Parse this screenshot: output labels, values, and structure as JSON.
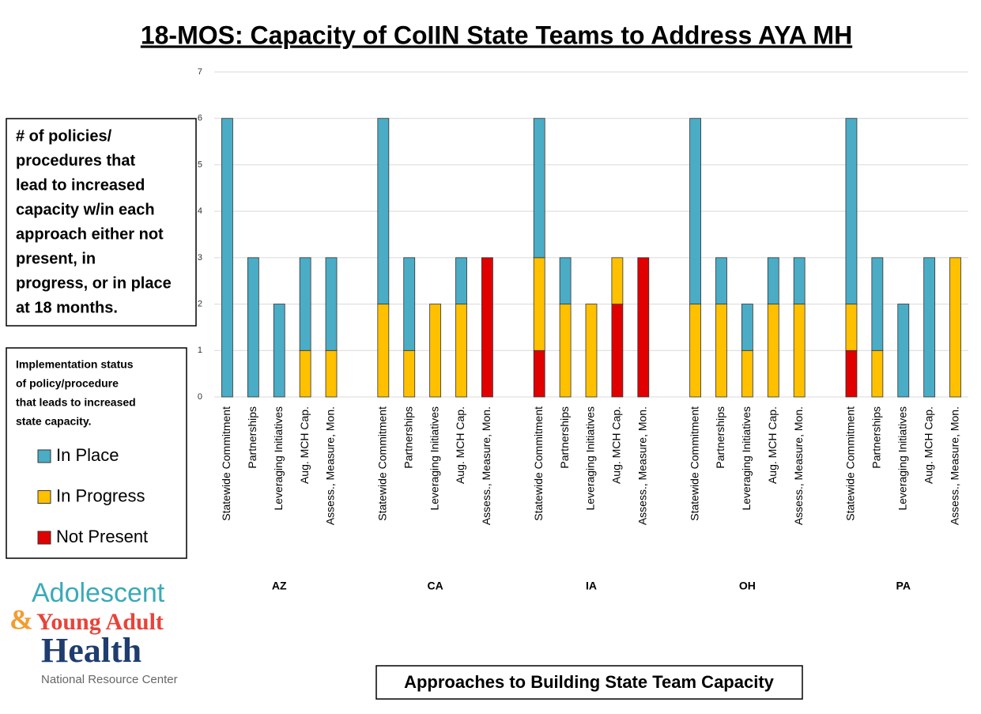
{
  "chart_data": {
    "type": "stacked_bar",
    "title": "18-MOS: Capacity of CoIIN State Teams to Address AYA MH",
    "x_label": "Approaches to Building State Team Capacity",
    "y_annotation": [
      "# of policies/",
      "procedures that",
      "lead to increased",
      "capacity w/in each",
      "approach either not",
      "present, in",
      "progress, or in place",
      "at 18 months."
    ],
    "legend_title": [
      "Implementation status",
      "of policy/procedure",
      "that leads to increased",
      "state capacity."
    ],
    "groups": [
      "AZ",
      "CA",
      "IA",
      "OH",
      "PA"
    ],
    "categories": [
      "Statewide Commitment",
      "Partnerships",
      "Leveraging Initiatives",
      "Aug. MCH Cap.",
      "Assess., Measure, Mon.",
      "Statewide Commitment",
      "Partnerships",
      "Leveraging Initiatives",
      "Aug. MCH Cap.",
      "Assess., Measure, Mon.",
      "Statewide Commitment",
      "Partnerships",
      "Leveraging Initiatives",
      "Aug. MCH Cap.",
      "Assess., Measure, Mon.",
      "Statewide Commitment",
      "Partnerships",
      "Leveraging Initiatives",
      "Aug. MCH Cap.",
      "Assess., Measure, Mon.",
      "Statewide Commitment",
      "Partnerships",
      "Leveraging Initiatives",
      "Aug. MCH Cap.",
      "Assess., Measure, Mon."
    ],
    "series": [
      {
        "name": "In Place",
        "color": "#4bacc6",
        "values": [
          6,
          3,
          2,
          2,
          2,
          4,
          2,
          0,
          1,
          0,
          3,
          1,
          0,
          0,
          0,
          4,
          1,
          1,
          1,
          1,
          4,
          2,
          2,
          3,
          0
        ]
      },
      {
        "name": "In Progress",
        "color": "#ffc000",
        "values": [
          0,
          0,
          0,
          1,
          1,
          2,
          1,
          2,
          2,
          0,
          2,
          2,
          2,
          1,
          0,
          2,
          2,
          1,
          2,
          2,
          1,
          1,
          0,
          0,
          3
        ]
      },
      {
        "name": "Not Present",
        "color": "#e00000",
        "values": [
          0,
          0,
          0,
          0,
          0,
          0,
          0,
          0,
          0,
          3,
          1,
          0,
          0,
          2,
          3,
          0,
          0,
          0,
          0,
          0,
          1,
          0,
          0,
          0,
          0
        ]
      }
    ],
    "ylim": [
      0,
      7
    ],
    "yticks": [
      0,
      1,
      2,
      3,
      4,
      5,
      6,
      7
    ],
    "grid": true,
    "logo": {
      "line1": "Adolescent",
      "amp": "&",
      "line2": "Young Adult",
      "line3": "Health",
      "line4": "National Resource Center"
    }
  }
}
